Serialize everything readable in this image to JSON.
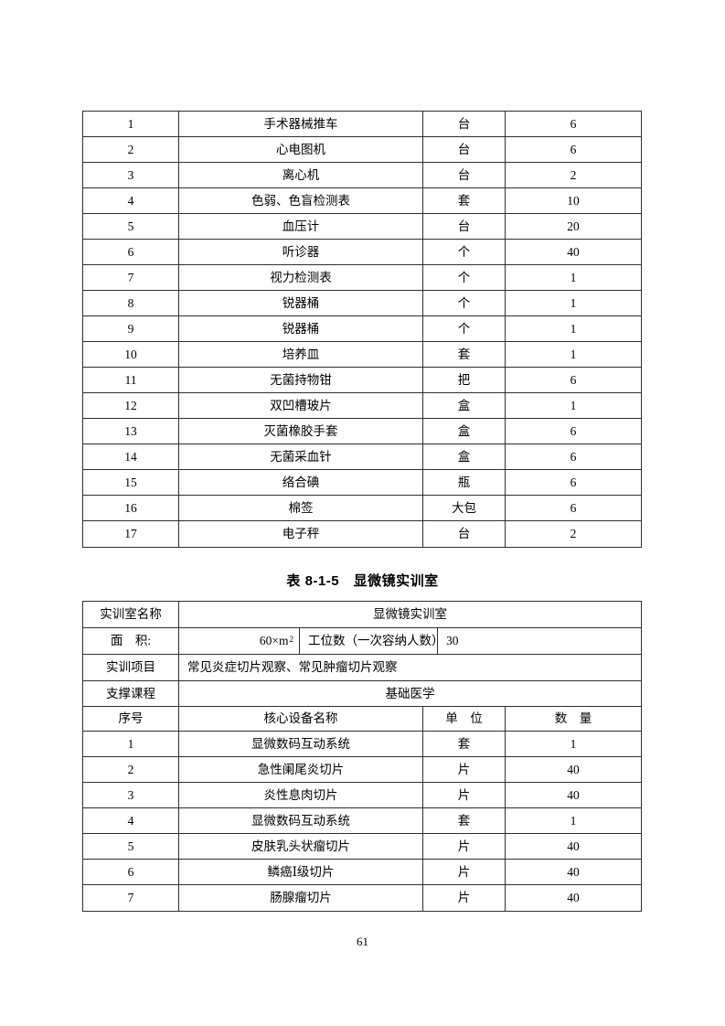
{
  "page": {
    "number": "61"
  },
  "caption": {
    "text": "表 8-1-5　显微镜实训室"
  },
  "table1": {
    "rows": [
      {
        "no": "1",
        "name": "手术器械推车",
        "unit": "台",
        "qty": "6"
      },
      {
        "no": "2",
        "name": "心电图机",
        "unit": "台",
        "qty": "6"
      },
      {
        "no": "3",
        "name": "离心机",
        "unit": "台",
        "qty": "2"
      },
      {
        "no": "4",
        "name": "色弱、色盲检测表",
        "unit": "套",
        "qty": "10"
      },
      {
        "no": "5",
        "name": "血压计",
        "unit": "台",
        "qty": "20"
      },
      {
        "no": "6",
        "name": "听诊器",
        "unit": "个",
        "qty": "40"
      },
      {
        "no": "7",
        "name": "视力检测表",
        "unit": "个",
        "qty": "1"
      },
      {
        "no": "8",
        "name": "锐器桶",
        "unit": "个",
        "qty": "1"
      },
      {
        "no": "9",
        "name": "锐器桶",
        "unit": "个",
        "qty": "1"
      },
      {
        "no": "10",
        "name": "培养皿",
        "unit": "套",
        "qty": "1"
      },
      {
        "no": "11",
        "name": "无菌持物钳",
        "unit": "把",
        "qty": "6"
      },
      {
        "no": "12",
        "name": "双凹槽玻片",
        "unit": "盒",
        "qty": "1"
      },
      {
        "no": "13",
        "name": "灭菌橡胶手套",
        "unit": "盒",
        "qty": "6"
      },
      {
        "no": "14",
        "name": "无菌采血针",
        "unit": "盒",
        "qty": "6"
      },
      {
        "no": "15",
        "name": "络合碘",
        "unit": "瓶",
        "qty": "6"
      },
      {
        "no": "16",
        "name": "棉签",
        "unit": "大包",
        "qty": "6"
      },
      {
        "no": "17",
        "name": "电子秤",
        "unit": "台",
        "qty": "2"
      }
    ]
  },
  "table2": {
    "info": {
      "room_label": "实训室名称",
      "room_value": "显微镜实训室",
      "area_label": "面　积:",
      "area_value": "60×m",
      "area_sup": "2",
      "capacity_label": "工位数（一次容纳人数）",
      "capacity_value": "30",
      "project_label": "实训项目",
      "project_value": "常见炎症切片观察、常见肿瘤切片观察",
      "course_label": "支撑课程",
      "course_value": "基础医学"
    },
    "columns": {
      "no": "序号",
      "name": "核心设备名称",
      "unit": "单　位",
      "qty": "数　量"
    },
    "rows": [
      {
        "no": "1",
        "name": "显微数码互动系统",
        "unit": "套",
        "qty": "1"
      },
      {
        "no": "2",
        "name": "急性阑尾炎切片",
        "unit": "片",
        "qty": "40"
      },
      {
        "no": "3",
        "name": "炎性息肉切片",
        "unit": "片",
        "qty": "40"
      },
      {
        "no": "4",
        "name": "显微数码互动系统",
        "unit": "套",
        "qty": "1"
      },
      {
        "no": "5",
        "name": "皮肤乳头状瘤切片",
        "unit": "片",
        "qty": "40"
      },
      {
        "no": "6",
        "name": "鳞癌Ⅰ级切片",
        "unit": "片",
        "qty": "40"
      },
      {
        "no": "7",
        "name": "肠腺瘤切片",
        "unit": "片",
        "qty": "40"
      }
    ]
  }
}
